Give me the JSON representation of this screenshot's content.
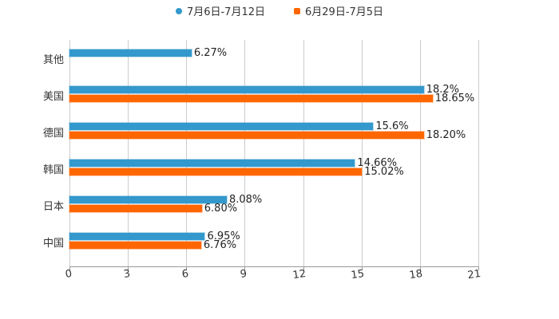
{
  "chart_data": {
    "type": "bar",
    "orientation": "horizontal",
    "title": "",
    "xlabel": "",
    "ylabel": "",
    "categories": [
      "其他",
      "美国",
      "德国",
      "韩国",
      "日本",
      "中国"
    ],
    "series": [
      {
        "name": "7月6日-7月12日",
        "color": "#3399cc",
        "values": [
          6.27,
          18.2,
          15.6,
          14.66,
          8.08,
          6.95
        ],
        "labels": [
          "6.27%",
          "18.2%",
          "15.6%",
          "14.66%",
          "8.08%",
          "6.95%"
        ]
      },
      {
        "name": "6月29日-7月5日",
        "color": "#ff6600",
        "values": [
          null,
          18.65,
          18.2,
          15.02,
          6.8,
          6.76
        ],
        "labels": [
          null,
          "18.65%",
          "18.20%",
          "15.02%",
          "6.80%",
          "6.76%"
        ]
      }
    ],
    "xlim": [
      0,
      21
    ],
    "xticks": [
      "0",
      "3",
      "6",
      "9",
      "12",
      "15",
      "18",
      "21"
    ],
    "grid": true,
    "legend_position": "top"
  },
  "legend": {
    "items": [
      {
        "label": "7月6日-7月12日",
        "color": "#3399cc"
      },
      {
        "label": "6月29日-7月5日",
        "color": "#ff6600"
      }
    ]
  }
}
